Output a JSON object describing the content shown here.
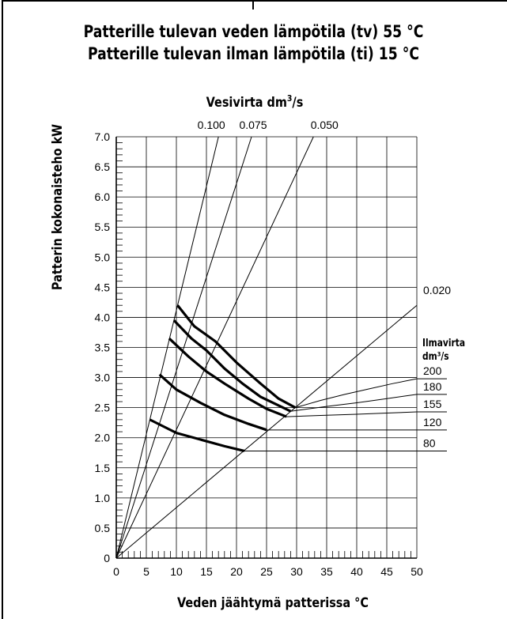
{
  "header": {
    "title_line1": "Patterille tulevan veden lämpötila (tv) 55 °C",
    "title_line2": "Patterille tulevan ilman lämpötila (ti) 15 °C"
  },
  "chart_data": {
    "type": "line",
    "xlabel": "Veden jäähtymä patterissa °C",
    "ylabel": "Patterin kokonaisteho kW",
    "xlim": [
      0,
      50
    ],
    "ylim": [
      0,
      7
    ],
    "grid": true,
    "x_ticks": [
      0,
      5,
      10,
      15,
      20,
      25,
      30,
      35,
      40,
      45,
      50
    ],
    "y_ticks": [
      0,
      0.5,
      1.0,
      1.5,
      2.0,
      2.5,
      3.0,
      3.5,
      4.0,
      4.5,
      5.0,
      5.5,
      6.0,
      6.5,
      7.0
    ],
    "y_tick_labels": [
      "0",
      "0.5",
      "1.0",
      "1.5",
      "2.0",
      "2.5",
      "3.0",
      "3.5",
      "4.0",
      "4.5",
      "5.0",
      "5.5",
      "6.0",
      "6.5",
      "7.0"
    ],
    "water_flow_title": "Vesivirta dm",
    "water_flow_title_sup": "3",
    "water_flow_title_suffix": "/s",
    "water_flow_lines": [
      {
        "label": "0.100",
        "points": [
          [
            0,
            0
          ],
          [
            17,
            7.0
          ]
        ]
      },
      {
        "label": "0.075",
        "points": [
          [
            0,
            0
          ],
          [
            22.5,
            7.0
          ]
        ]
      },
      {
        "label": "0.050",
        "points": [
          [
            0,
            0
          ],
          [
            32.8,
            7.0
          ]
        ]
      },
      {
        "label": "0.020",
        "points": [
          [
            0,
            0
          ],
          [
            50,
            4.2
          ]
        ]
      }
    ],
    "air_flow_title_line1": "Ilmavirta",
    "air_flow_title_line2": "dm³/s",
    "air_flow_curves": [
      {
        "label": "200",
        "points": [
          [
            10.2,
            4.2
          ],
          [
            13,
            3.85
          ],
          [
            16.5,
            3.6
          ],
          [
            20,
            3.25
          ],
          [
            24,
            2.9
          ],
          [
            27,
            2.65
          ],
          [
            29.8,
            2.5
          ],
          [
            34,
            2.62
          ],
          [
            38,
            2.72
          ],
          [
            42,
            2.81
          ],
          [
            46,
            2.9
          ],
          [
            50,
            2.98
          ]
        ]
      },
      {
        "label": "180",
        "points": [
          [
            9.6,
            3.95
          ],
          [
            12.5,
            3.65
          ],
          [
            15,
            3.45
          ],
          [
            18,
            3.15
          ],
          [
            21,
            2.9
          ],
          [
            24,
            2.68
          ],
          [
            29,
            2.44
          ],
          [
            35,
            2.52
          ],
          [
            40,
            2.58
          ],
          [
            45,
            2.65
          ],
          [
            50,
            2.72
          ]
        ]
      },
      {
        "label": "155",
        "points": [
          [
            8.8,
            3.65
          ],
          [
            12,
            3.35
          ],
          [
            15,
            3.1
          ],
          [
            18,
            2.9
          ],
          [
            22,
            2.65
          ],
          [
            25,
            2.48
          ],
          [
            28.3,
            2.35
          ],
          [
            34,
            2.37
          ],
          [
            40,
            2.39
          ],
          [
            45,
            2.41
          ],
          [
            50,
            2.43
          ]
        ]
      },
      {
        "label": "120",
        "points": [
          [
            7.2,
            3.05
          ],
          [
            10,
            2.8
          ],
          [
            14,
            2.58
          ],
          [
            18,
            2.38
          ],
          [
            22,
            2.23
          ],
          [
            25,
            2.13
          ],
          [
            30,
            2.13
          ],
          [
            35,
            2.13
          ],
          [
            40,
            2.13
          ],
          [
            45,
            2.13
          ],
          [
            50,
            2.13
          ]
        ]
      },
      {
        "label": "80",
        "points": [
          [
            5.6,
            2.3
          ],
          [
            10,
            2.08
          ],
          [
            14,
            1.97
          ],
          [
            18,
            1.86
          ],
          [
            21.3,
            1.78
          ],
          [
            25,
            1.78
          ],
          [
            30,
            1.78
          ],
          [
            40,
            1.78
          ],
          [
            50,
            1.78
          ]
        ]
      }
    ]
  }
}
